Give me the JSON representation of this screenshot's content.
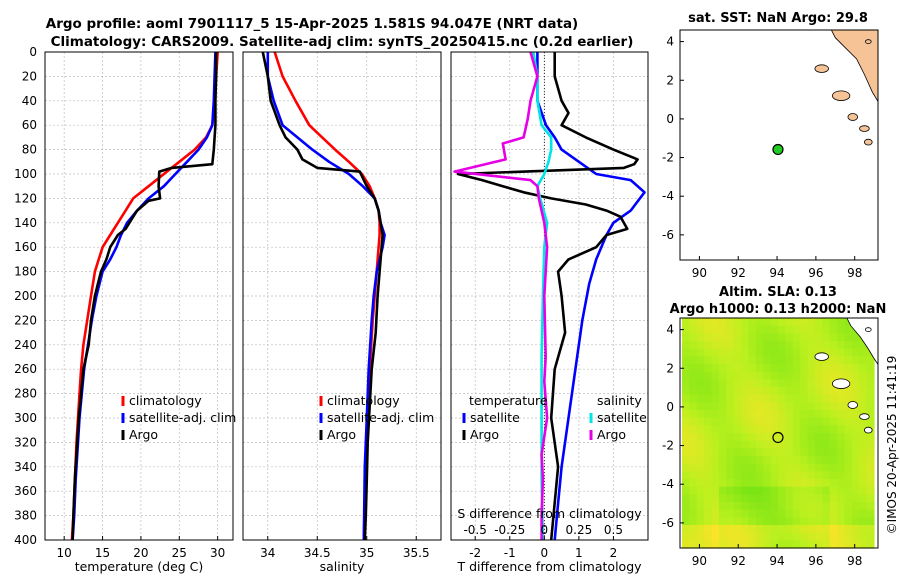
{
  "title": {
    "line1": "Argo profile: aoml 7901117_5 15-Apr-2025 1.581S 94.047E (NRT data)",
    "line2": "Climatology: CARS2009. Satellite-adj clim: synTS_20250415.nc (0.2d earlier)"
  },
  "depth_axis": {
    "min": 0,
    "max": 400,
    "ticks": [
      0,
      20,
      40,
      60,
      80,
      100,
      120,
      140,
      160,
      180,
      200,
      220,
      240,
      260,
      280,
      300,
      320,
      340,
      360,
      380,
      400
    ]
  },
  "credit": "©IMOS 20-Apr-2025 11:41:19",
  "chart_data": [
    {
      "id": "temperature",
      "type": "line",
      "xlabel": "temperature (deg C)",
      "xlim": [
        7.5,
        32
      ],
      "xticks": [
        10,
        15,
        20,
        25,
        30
      ],
      "ylim": [
        400,
        0
      ],
      "legend": [
        "climatology",
        "satellite-adj. clim",
        "Argo"
      ],
      "series": [
        {
          "name": "climatology",
          "color": "#ff0000",
          "x": [
            30,
            29.8,
            29.6,
            29.3,
            28.5,
            27,
            25,
            23,
            21,
            19,
            18,
            17,
            16,
            15,
            14.5,
            14,
            13.5,
            13,
            12.5,
            12.2,
            12,
            11.8,
            11.6,
            11.4,
            11.2,
            11
          ],
          "y": [
            0,
            20,
            40,
            60,
            70,
            80,
            90,
            100,
            110,
            120,
            130,
            140,
            150,
            160,
            170,
            180,
            200,
            220,
            240,
            260,
            280,
            300,
            320,
            350,
            380,
            400
          ]
        },
        {
          "name": "satellite-adj. clim",
          "color": "#0000ff",
          "x": [
            29.7,
            29.6,
            29.5,
            29.3,
            28.6,
            27.5,
            26,
            24.5,
            23,
            21,
            19.5,
            18.2,
            17.4,
            16.8,
            16,
            15,
            14.2,
            13.6,
            13.1,
            12.6,
            12.3,
            12,
            11.8,
            11.5,
            11.3,
            11.1
          ],
          "y": [
            0,
            20,
            40,
            60,
            70,
            80,
            90,
            100,
            110,
            120,
            130,
            140,
            150,
            160,
            170,
            180,
            200,
            220,
            240,
            260,
            280,
            300,
            320,
            350,
            380,
            400
          ]
        },
        {
          "name": "Argo",
          "color": "#000000",
          "x": [
            29.8,
            29.8,
            29.7,
            29.7,
            29.6,
            29.5,
            29.3,
            24,
            22.4,
            22.3,
            22.5,
            21,
            19.5,
            19,
            18.5,
            18,
            17,
            16,
            15.5,
            14.8,
            14.4,
            14,
            13.5,
            13.2,
            12.5,
            12.2,
            11.9,
            11.7,
            11.4,
            11.2,
            11.1
          ],
          "y": [
            0,
            20,
            40,
            60,
            70,
            80,
            92,
            95,
            98,
            110,
            120,
            122,
            130,
            135,
            140,
            145,
            150,
            160,
            170,
            180,
            190,
            200,
            220,
            240,
            260,
            280,
            300,
            320,
            350,
            380,
            400
          ]
        }
      ]
    },
    {
      "id": "salinity",
      "type": "line",
      "xlabel": "salinity",
      "xlim": [
        33.75,
        35.75
      ],
      "xticks": [
        34,
        34.5,
        35,
        35.5
      ],
      "ylim": [
        400,
        0
      ],
      "legend": [
        "climatology",
        "satellite-adj. clim",
        "Argo"
      ],
      "series": [
        {
          "name": "climatology",
          "color": "#ff0000",
          "x": [
            34.07,
            34.15,
            34.28,
            34.42,
            34.55,
            34.68,
            34.82,
            34.95,
            35.03,
            35.08,
            35.12,
            35.13,
            35.13,
            35.12,
            35.1,
            35.08,
            35.06,
            35.03,
            35.01,
            34.99,
            34.98,
            34.97
          ],
          "y": [
            0,
            20,
            40,
            60,
            70,
            80,
            90,
            100,
            110,
            120,
            130,
            140,
            150,
            160,
            180,
            200,
            220,
            260,
            300,
            340,
            370,
            400
          ]
        },
        {
          "name": "satellite-adj. clim",
          "color": "#0000ff",
          "x": [
            34.0,
            34.0,
            34.06,
            34.15,
            34.3,
            34.45,
            34.62,
            34.82,
            34.96,
            35.08,
            35.12,
            35.14,
            35.18,
            35.16,
            35.1,
            35.07,
            35.05,
            35.02,
            35.0,
            34.98,
            34.97
          ],
          "y": [
            0,
            20,
            40,
            60,
            70,
            80,
            90,
            100,
            110,
            120,
            130,
            140,
            150,
            160,
            180,
            200,
            220,
            260,
            300,
            340,
            400
          ]
        },
        {
          "name": "Argo",
          "color": "#000000",
          "x": [
            33.95,
            34.0,
            34.03,
            34.12,
            34.18,
            34.3,
            34.35,
            34.5,
            34.93,
            34.97,
            35.0,
            35.08,
            35.12,
            35.16,
            35.14,
            35.11,
            35.09,
            35.05,
            35.03,
            35.01,
            35.0,
            34.99,
            34.98
          ],
          "y": [
            0,
            20,
            40,
            60,
            70,
            80,
            88,
            95,
            98,
            105,
            110,
            120,
            130,
            150,
            170,
            200,
            230,
            260,
            290,
            320,
            350,
            380,
            400
          ]
        }
      ]
    },
    {
      "id": "difference",
      "type": "line",
      "xlabel": "T difference from climatology",
      "xlabel2": "S difference from climatology",
      "xlim": [
        -2.7,
        3.0
      ],
      "xticks": [
        -2,
        -1,
        0,
        1,
        2
      ],
      "s_xlim": [
        -0.675,
        0.75
      ],
      "s_xticks": [
        -0.5,
        -0.25,
        0,
        0.25,
        0.5
      ],
      "s_ticklabels": [
        "-0.5",
        "-0.25",
        "0",
        "0.25",
        "0.5"
      ],
      "ylim": [
        400,
        0
      ],
      "legend_t": {
        "header": "temperature",
        "items": [
          "satellite",
          "Argo"
        ]
      },
      "legend_s": {
        "header": "salinity",
        "items": [
          "satellite",
          "Argo"
        ]
      },
      "series": [
        {
          "name": "T satellite",
          "color": "#0000ff",
          "scale": "T",
          "x": [
            -0.2,
            -0.2,
            -0.2,
            0.05,
            0.3,
            0.5,
            1.0,
            1.5,
            2.5,
            2.9,
            2.5,
            2.0,
            1.8,
            1.5,
            1.3,
            1.1,
            0.9,
            0.7,
            0.5,
            0.4,
            0.3
          ],
          "y": [
            0,
            20,
            40,
            60,
            70,
            80,
            90,
            100,
            105,
            115,
            130,
            140,
            150,
            170,
            190,
            220,
            260,
            300,
            340,
            370,
            400
          ]
        },
        {
          "name": "T Argo",
          "color": "#000000",
          "scale": "T",
          "x": [
            0.3,
            0.3,
            0.5,
            0.7,
            0.5,
            1.2,
            2.0,
            2.7,
            2.6,
            2.3,
            -2.5,
            -1.8,
            -1.2,
            -0.6,
            0.2,
            1.2,
            1.8,
            2.2,
            2.4,
            1.8,
            1.5,
            0.7,
            0.4,
            0.5,
            0.6,
            0.3,
            0.2,
            0.4,
            0.2
          ],
          "y": [
            0,
            20,
            40,
            50,
            60,
            70,
            80,
            88,
            92,
            95,
            100,
            105,
            110,
            115,
            120,
            125,
            130,
            135,
            145,
            150,
            160,
            170,
            180,
            200,
            230,
            260,
            300,
            340,
            400
          ]
        },
        {
          "name": "S satellite",
          "color": "#00e5e5",
          "scale": "S",
          "x": [
            -0.08,
            -0.05,
            -0.05,
            -0.02,
            0.05,
            0.05,
            0.03,
            0.0,
            -0.05,
            -0.03,
            0.02,
            0.0,
            -0.01,
            -0.02,
            -0.02,
            -0.02,
            -0.01
          ],
          "y": [
            0,
            20,
            40,
            60,
            70,
            80,
            90,
            100,
            110,
            120,
            140,
            160,
            200,
            250,
            300,
            350,
            400
          ]
        },
        {
          "name": "S Argo",
          "color": "#e600e6",
          "scale": "S",
          "x": [
            -0.1,
            -0.05,
            -0.1,
            -0.12,
            -0.15,
            -0.3,
            -0.28,
            -0.65,
            -0.1,
            -0.05,
            -0.04,
            0.0,
            0.02,
            0.0,
            0.01,
            0.0,
            0.02,
            -0.02,
            -0.01,
            -0.02,
            -0.02
          ],
          "y": [
            0,
            20,
            40,
            55,
            70,
            75,
            88,
            98,
            105,
            110,
            120,
            140,
            160,
            200,
            250,
            270,
            300,
            330,
            350,
            380,
            400
          ]
        }
      ]
    },
    {
      "id": "sst_map",
      "type": "scatter",
      "title": "sat. SST: NaN Argo: 29.8",
      "xlim": [
        89,
        99.2
      ],
      "ylim": [
        -7.3,
        4.6
      ],
      "xticks": [
        90,
        92,
        94,
        96,
        98
      ],
      "yticks": [
        4,
        2,
        0,
        -2,
        -4,
        -6
      ],
      "point": {
        "lon": 94.047,
        "lat": -1.581,
        "color": "#22cc22"
      }
    },
    {
      "id": "sla_map",
      "type": "heatmap",
      "title_line1": "Altim. SLA: 0.13",
      "title_line2": "Argo h1000: 0.13 h2000: NaN",
      "xlim": [
        89,
        99.2
      ],
      "ylim": [
        -7.3,
        4.6
      ],
      "xticks": [
        90,
        92,
        94,
        96,
        98
      ],
      "yticks": [
        4,
        2,
        0,
        -2,
        -4,
        -6
      ],
      "point": {
        "lon": 94.047,
        "lat": -1.581
      }
    }
  ]
}
